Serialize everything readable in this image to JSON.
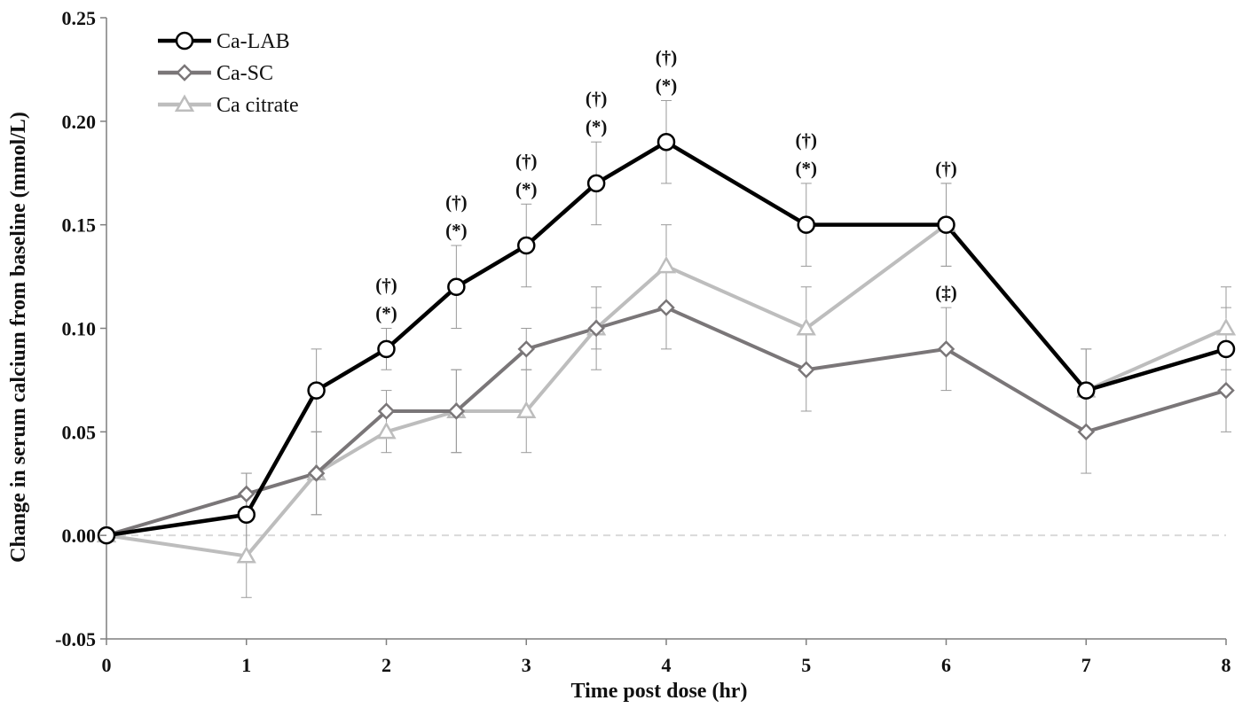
{
  "chart_data": {
    "type": "line",
    "title": "",
    "xlabel": "Time post dose (hr)",
    "ylabel": "Change in serum calcium from baseline (mmol/L)",
    "xlim": [
      0,
      8
    ],
    "ylim": [
      -0.05,
      0.25
    ],
    "x_ticks": [
      0,
      1,
      2,
      3,
      4,
      5,
      6,
      7,
      8
    ],
    "x_tick_labels": [
      "0",
      "1",
      "2",
      "3",
      "4",
      "5",
      "6",
      "7",
      "8"
    ],
    "y_ticks": [
      -0.05,
      0.0,
      0.05,
      0.1,
      0.15,
      0.2,
      0.25
    ],
    "y_tick_labels": [
      "-0.05",
      "0.00",
      "0.05",
      "0.10",
      "0.15",
      "0.20",
      "0.25"
    ],
    "grid": false,
    "legend_position": "top-left",
    "x": [
      0,
      1,
      1.5,
      2,
      2.5,
      3,
      3.5,
      4,
      5,
      6,
      7,
      8
    ],
    "series": [
      {
        "name": "Ca-LAB",
        "color": "#000000",
        "marker": "circle",
        "values": [
          0.0,
          0.01,
          0.07,
          0.09,
          0.12,
          0.14,
          0.17,
          0.19,
          0.15,
          0.15,
          0.07,
          0.09
        ],
        "errors": [
          0.0,
          0.02,
          0.02,
          0.01,
          0.02,
          0.02,
          0.02,
          0.02,
          0.02,
          0.02,
          0.02,
          0.02
        ]
      },
      {
        "name": "Ca-SC",
        "color": "#7a7678",
        "marker": "diamond",
        "values": [
          0.0,
          0.02,
          0.03,
          0.06,
          0.06,
          0.09,
          0.1,
          0.11,
          0.08,
          0.09,
          0.05,
          0.07
        ],
        "errors": [
          0.0,
          0.01,
          0.02,
          0.01,
          0.02,
          0.01,
          0.02,
          0.02,
          0.02,
          0.02,
          0.02,
          0.02
        ]
      },
      {
        "name": "Ca citrate",
        "color": "#bdbdbd",
        "marker": "triangle",
        "values": [
          0.0,
          -0.01,
          0.03,
          0.05,
          0.06,
          0.06,
          0.1,
          0.13,
          0.1,
          0.15,
          0.07,
          0.1
        ],
        "errors": [
          0.0,
          0.02,
          0.02,
          0.01,
          0.02,
          0.02,
          0.01,
          0.02,
          0.02,
          0.02,
          0.02,
          0.02
        ]
      }
    ],
    "annotations": [
      {
        "x": 2,
        "lines": [
          "(†)",
          "(*)"
        ]
      },
      {
        "x": 2.5,
        "lines": [
          "(†)",
          "(*)"
        ]
      },
      {
        "x": 3,
        "lines": [
          "(†)",
          "(*)"
        ]
      },
      {
        "x": 3.5,
        "lines": [
          "(†)",
          "(*)"
        ]
      },
      {
        "x": 4,
        "lines": [
          "(†)",
          "(*)"
        ]
      },
      {
        "x": 5,
        "lines": [
          "(†)",
          "(*)"
        ]
      },
      {
        "x": 6,
        "lines": [
          "(†)"
        ]
      },
      {
        "x": 6,
        "lines": [
          "(‡)"
        ],
        "placement": "below"
      }
    ],
    "zero_line": {
      "value": 0.0,
      "style": "dashed",
      "color": "#d9d9d9"
    }
  }
}
